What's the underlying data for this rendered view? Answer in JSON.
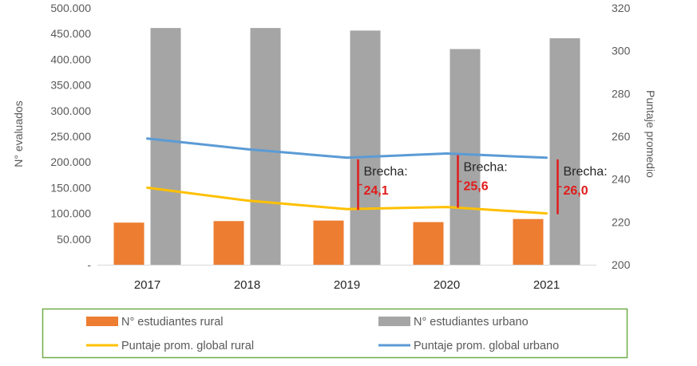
{
  "chart_data": {
    "type": "bar",
    "title": "",
    "categories": [
      "2017",
      "2018",
      "2019",
      "2020",
      "2021"
    ],
    "series": [
      {
        "name": "N° estudiantes rural",
        "kind": "bar",
        "axis": "left",
        "color": "#ED7D31",
        "values": [
          82000,
          85000,
          86000,
          83000,
          89000
        ]
      },
      {
        "name": "N° estudiantes urbano",
        "kind": "bar",
        "axis": "left",
        "color": "#A5A5A5",
        "values": [
          461000,
          461000,
          456000,
          420000,
          441000
        ]
      },
      {
        "name": "Puntaje prom. global rural",
        "kind": "line",
        "axis": "right",
        "color": "#FFC000",
        "values": [
          236,
          230,
          226,
          227,
          224
        ]
      },
      {
        "name": "Puntaje prom. global urbano",
        "kind": "line",
        "axis": "right",
        "color": "#5B9BD5",
        "values": [
          259,
          254,
          250,
          252,
          250
        ]
      }
    ],
    "y_left": {
      "label": "N° evaluados",
      "range": [
        0,
        500000
      ],
      "tick_labels": [
        "-",
        "50.000",
        "100.000",
        "150.000",
        "200.000",
        "250.000",
        "300.000",
        "350.000",
        "400.000",
        "450.000",
        "500.000"
      ]
    },
    "y_right": {
      "label": "Puntaje promedio",
      "range": [
        200,
        320
      ],
      "tick_labels": [
        "200",
        "220",
        "240",
        "260",
        "280",
        "300",
        "320"
      ]
    },
    "annotations": [
      {
        "category": "2019",
        "label": "Brecha:",
        "value": "24,1"
      },
      {
        "category": "2020",
        "label": "Brecha:",
        "value": "25,6"
      },
      {
        "category": "2021",
        "label": "Brecha:",
        "value": "26,0"
      }
    ],
    "annotation_color": "#E11B1B",
    "legend": {
      "position": "bottom",
      "border_color": "#70AD47"
    },
    "grid": false
  }
}
